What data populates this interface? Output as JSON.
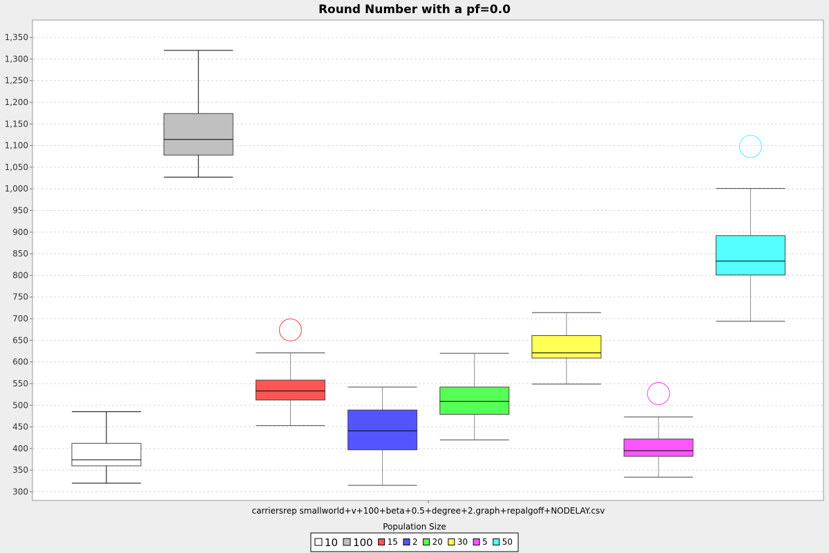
{
  "chart_data": {
    "type": "box",
    "title": "Round Number with a pf=0.0",
    "xlabel": "Population Size",
    "category": "carriersrep smallworld+v+100+beta+0.5+degree+2.graph+repalgoff+NODELAY.csv",
    "ylim": [
      280,
      1390
    ],
    "ytick_step": 50,
    "yticks": [
      300,
      350,
      400,
      450,
      500,
      550,
      600,
      650,
      700,
      750,
      800,
      850,
      900,
      950,
      1000,
      1050,
      1100,
      1150,
      1200,
      1250,
      1300,
      1350
    ],
    "grid": true,
    "legend_position": "bottom",
    "series": [
      {
        "name": "10",
        "color": "#ffffff",
        "stroke": "#000000",
        "min": 320,
        "q1": 360,
        "median": 374,
        "q3": 412,
        "max": 485,
        "outliers": []
      },
      {
        "name": "100",
        "color": "#c0c0c0",
        "stroke": "#000000",
        "min": 1027,
        "q1": 1078,
        "median": 1114,
        "q3": 1174,
        "max": 1320,
        "outliers": []
      },
      {
        "name": "15",
        "color": "#ff5555",
        "stroke": "#888888",
        "min": 453,
        "q1": 512,
        "median": 533,
        "q3": 558,
        "max": 621,
        "outliers": [
          674
        ]
      },
      {
        "name": "2",
        "color": "#5555ff",
        "stroke": "#888888",
        "min": 315,
        "q1": 397,
        "median": 441,
        "q3": 489,
        "max": 542,
        "outliers": []
      },
      {
        "name": "20",
        "color": "#55ff55",
        "stroke": "#888888",
        "min": 420,
        "q1": 479,
        "median": 509,
        "q3": 542,
        "max": 620,
        "outliers": []
      },
      {
        "name": "30",
        "color": "#ffff55",
        "stroke": "#888888",
        "min": 549,
        "q1": 609,
        "median": 621,
        "q3": 661,
        "max": 714,
        "outliers": []
      },
      {
        "name": "5",
        "color": "#ff55ff",
        "stroke": "#888888",
        "min": 334,
        "q1": 382,
        "median": 395,
        "q3": 422,
        "max": 473,
        "outliers": [
          527
        ]
      },
      {
        "name": "50",
        "color": "#55ffff",
        "stroke": "#888888",
        "min": 694,
        "q1": 801,
        "median": 833,
        "q3": 892,
        "max": 1001,
        "outliers": [
          1098
        ]
      }
    ]
  }
}
